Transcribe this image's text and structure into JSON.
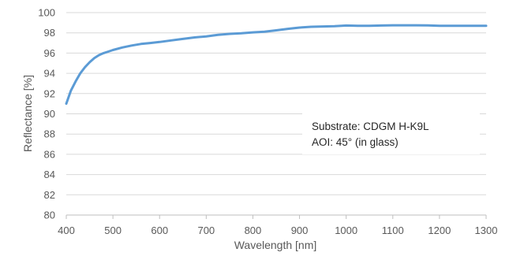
{
  "chart_data": {
    "type": "line",
    "xlabel": "Wavelength [nm]",
    "ylabel": "Reflectance  [%]",
    "xlim": [
      400,
      1300
    ],
    "ylim": [
      80,
      100
    ],
    "xticks": [
      400,
      500,
      600,
      700,
      800,
      900,
      1000,
      1100,
      1200,
      1300
    ],
    "yticks": [
      80,
      82,
      84,
      86,
      88,
      90,
      92,
      94,
      96,
      98,
      100
    ],
    "grid": "horizontal",
    "legend": "none",
    "line_color": "#5b9bd5",
    "annotation": [
      "Substrate: CDGM H-K9L",
      "AOI: 45° (in glass)"
    ],
    "series": [
      {
        "x": [
          400,
          410,
          420,
          430,
          440,
          450,
          460,
          470,
          480,
          490,
          500,
          520,
          540,
          560,
          580,
          600,
          625,
          650,
          675,
          700,
          725,
          750,
          775,
          800,
          825,
          850,
          875,
          900,
          925,
          950,
          975,
          990,
          1000,
          1025,
          1050,
          1075,
          1100,
          1125,
          1150,
          1175,
          1200,
          1225,
          1250,
          1275,
          1300
        ],
        "values": [
          91.0,
          92.3,
          93.2,
          94.0,
          94.6,
          95.1,
          95.5,
          95.8,
          96.0,
          96.15,
          96.3,
          96.55,
          96.75,
          96.9,
          97.0,
          97.1,
          97.25,
          97.4,
          97.55,
          97.65,
          97.8,
          97.9,
          97.95,
          98.05,
          98.12,
          98.25,
          98.4,
          98.52,
          98.6,
          98.63,
          98.66,
          98.7,
          98.72,
          98.7,
          98.7,
          98.72,
          98.75,
          98.75,
          98.75,
          98.73,
          98.7,
          98.7,
          98.7,
          98.7,
          98.7
        ]
      }
    ]
  }
}
